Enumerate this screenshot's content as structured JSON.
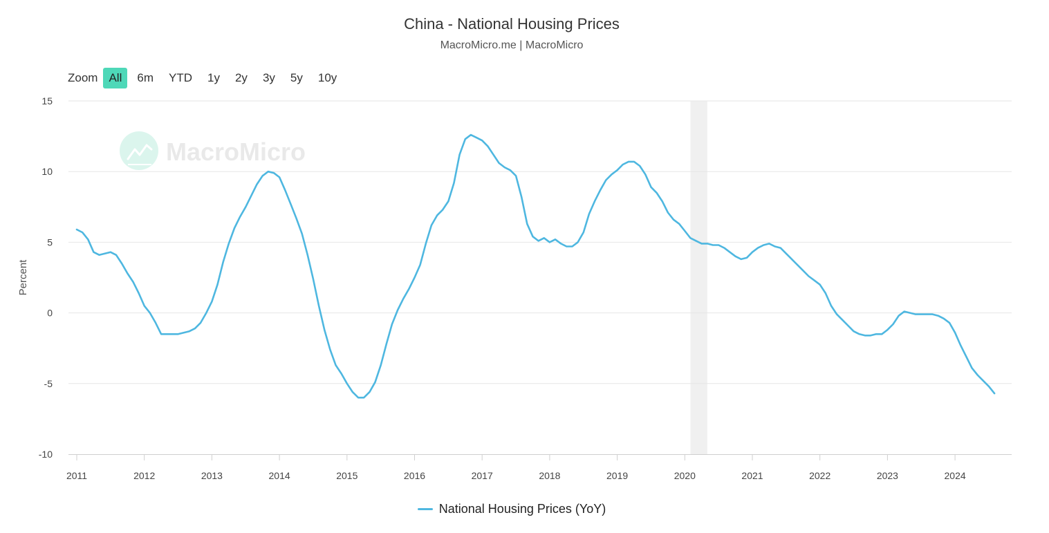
{
  "header": {
    "title": "China - National Housing Prices",
    "subtitle": "MacroMicro.me | MacroMicro"
  },
  "zoom": {
    "label": "Zoom",
    "options": [
      "All",
      "6m",
      "YTD",
      "1y",
      "2y",
      "3y",
      "5y",
      "10y"
    ],
    "active": "All"
  },
  "watermark": {
    "text": "MacroMicro",
    "icon": "chart-trend-icon"
  },
  "colors": {
    "series": "#4eb7e0",
    "zoom_active": "#4ed8b8",
    "shade": "#f0f0f0",
    "grid": "#e6e6e6"
  },
  "chart_data": {
    "type": "line",
    "title": "China - National Housing Prices",
    "subtitle": "MacroMicro.me | MacroMicro",
    "ylabel": "Percent",
    "xlabel": "",
    "ylim": [
      -10,
      15
    ],
    "yticks": [
      15,
      10,
      5,
      0,
      -5,
      -10
    ],
    "xlim": [
      "2011-01",
      "2024-12"
    ],
    "xticks": [
      "2011",
      "2012",
      "2013",
      "2014",
      "2015",
      "2016",
      "2017",
      "2018",
      "2019",
      "2020",
      "2021",
      "2022",
      "2023",
      "2024"
    ],
    "grid": true,
    "legend_position": "bottom-center",
    "shaded_ranges": [
      [
        "2020-02",
        "2020-04"
      ]
    ],
    "series": [
      {
        "name": "National Housing Prices (YoY)",
        "color": "#4eb7e0",
        "points": [
          [
            "2011-01",
            5.9
          ],
          [
            "2011-02",
            5.7
          ],
          [
            "2011-03",
            5.2
          ],
          [
            "2011-04",
            4.3
          ],
          [
            "2011-05",
            4.1
          ],
          [
            "2011-06",
            4.2
          ],
          [
            "2011-07",
            4.3
          ],
          [
            "2011-08",
            4.1
          ],
          [
            "2011-09",
            3.5
          ],
          [
            "2011-10",
            2.8
          ],
          [
            "2011-11",
            2.2
          ],
          [
            "2011-12",
            1.4
          ],
          [
            "2012-01",
            0.5
          ],
          [
            "2012-02",
            0.0
          ],
          [
            "2012-03",
            -0.7
          ],
          [
            "2012-04",
            -1.5
          ],
          [
            "2012-05",
            -1.5
          ],
          [
            "2012-06",
            -1.5
          ],
          [
            "2012-07",
            -1.5
          ],
          [
            "2012-08",
            -1.4
          ],
          [
            "2012-09",
            -1.3
          ],
          [
            "2012-10",
            -1.1
          ],
          [
            "2012-11",
            -0.7
          ],
          [
            "2012-12",
            0.0
          ],
          [
            "2013-01",
            0.8
          ],
          [
            "2013-02",
            2.0
          ],
          [
            "2013-03",
            3.6
          ],
          [
            "2013-04",
            4.9
          ],
          [
            "2013-05",
            6.0
          ],
          [
            "2013-06",
            6.8
          ],
          [
            "2013-07",
            7.5
          ],
          [
            "2013-08",
            8.3
          ],
          [
            "2013-09",
            9.1
          ],
          [
            "2013-10",
            9.7
          ],
          [
            "2013-11",
            10.0
          ],
          [
            "2013-12",
            9.9
          ],
          [
            "2014-01",
            9.6
          ],
          [
            "2014-02",
            8.7
          ],
          [
            "2014-03",
            7.7
          ],
          [
            "2014-04",
            6.7
          ],
          [
            "2014-05",
            5.6
          ],
          [
            "2014-06",
            4.1
          ],
          [
            "2014-07",
            2.4
          ],
          [
            "2014-08",
            0.5
          ],
          [
            "2014-09",
            -1.2
          ],
          [
            "2014-10",
            -2.6
          ],
          [
            "2014-11",
            -3.7
          ],
          [
            "2014-12",
            -4.3
          ],
          [
            "2015-01",
            -5.0
          ],
          [
            "2015-02",
            -5.6
          ],
          [
            "2015-03",
            -6.0
          ],
          [
            "2015-04",
            -6.0
          ],
          [
            "2015-05",
            -5.6
          ],
          [
            "2015-06",
            -4.9
          ],
          [
            "2015-07",
            -3.7
          ],
          [
            "2015-08",
            -2.2
          ],
          [
            "2015-09",
            -0.8
          ],
          [
            "2015-10",
            0.2
          ],
          [
            "2015-11",
            1.0
          ],
          [
            "2015-12",
            1.7
          ],
          [
            "2016-01",
            2.5
          ],
          [
            "2016-02",
            3.4
          ],
          [
            "2016-03",
            4.9
          ],
          [
            "2016-04",
            6.2
          ],
          [
            "2016-05",
            6.9
          ],
          [
            "2016-06",
            7.3
          ],
          [
            "2016-07",
            7.9
          ],
          [
            "2016-08",
            9.2
          ],
          [
            "2016-09",
            11.2
          ],
          [
            "2016-10",
            12.3
          ],
          [
            "2016-11",
            12.6
          ],
          [
            "2016-12",
            12.4
          ],
          [
            "2017-01",
            12.2
          ],
          [
            "2017-02",
            11.8
          ],
          [
            "2017-03",
            11.2
          ],
          [
            "2017-04",
            10.6
          ],
          [
            "2017-05",
            10.3
          ],
          [
            "2017-06",
            10.1
          ],
          [
            "2017-07",
            9.7
          ],
          [
            "2017-08",
            8.2
          ],
          [
            "2017-09",
            6.3
          ],
          [
            "2017-10",
            5.4
          ],
          [
            "2017-11",
            5.1
          ],
          [
            "2017-12",
            5.3
          ],
          [
            "2018-01",
            5.0
          ],
          [
            "2018-02",
            5.2
          ],
          [
            "2018-03",
            4.9
          ],
          [
            "2018-04",
            4.7
          ],
          [
            "2018-05",
            4.7
          ],
          [
            "2018-06",
            5.0
          ],
          [
            "2018-07",
            5.7
          ],
          [
            "2018-08",
            7.0
          ],
          [
            "2018-09",
            7.9
          ],
          [
            "2018-10",
            8.7
          ],
          [
            "2018-11",
            9.4
          ],
          [
            "2018-12",
            9.8
          ],
          [
            "2019-01",
            10.1
          ],
          [
            "2019-02",
            10.5
          ],
          [
            "2019-03",
            10.7
          ],
          [
            "2019-04",
            10.7
          ],
          [
            "2019-05",
            10.4
          ],
          [
            "2019-06",
            9.8
          ],
          [
            "2019-07",
            8.9
          ],
          [
            "2019-08",
            8.5
          ],
          [
            "2019-09",
            7.9
          ],
          [
            "2019-10",
            7.1
          ],
          [
            "2019-11",
            6.6
          ],
          [
            "2019-12",
            6.3
          ],
          [
            "2020-01",
            5.8
          ],
          [
            "2020-02",
            5.3
          ],
          [
            "2020-03",
            5.1
          ],
          [
            "2020-04",
            4.9
          ],
          [
            "2020-05",
            4.9
          ],
          [
            "2020-06",
            4.8
          ],
          [
            "2020-07",
            4.8
          ],
          [
            "2020-08",
            4.6
          ],
          [
            "2020-09",
            4.3
          ],
          [
            "2020-10",
            4.0
          ],
          [
            "2020-11",
            3.8
          ],
          [
            "2020-12",
            3.9
          ],
          [
            "2021-01",
            4.3
          ],
          [
            "2021-02",
            4.6
          ],
          [
            "2021-03",
            4.8
          ],
          [
            "2021-04",
            4.9
          ],
          [
            "2021-05",
            4.7
          ],
          [
            "2021-06",
            4.6
          ],
          [
            "2021-07",
            4.2
          ],
          [
            "2021-08",
            3.8
          ],
          [
            "2021-09",
            3.4
          ],
          [
            "2021-10",
            3.0
          ],
          [
            "2021-11",
            2.6
          ],
          [
            "2021-12",
            2.3
          ],
          [
            "2022-01",
            2.0
          ],
          [
            "2022-02",
            1.4
          ],
          [
            "2022-03",
            0.5
          ],
          [
            "2022-04",
            -0.1
          ],
          [
            "2022-05",
            -0.5
          ],
          [
            "2022-06",
            -0.9
          ],
          [
            "2022-07",
            -1.3
          ],
          [
            "2022-08",
            -1.5
          ],
          [
            "2022-09",
            -1.6
          ],
          [
            "2022-10",
            -1.6
          ],
          [
            "2022-11",
            -1.5
          ],
          [
            "2022-12",
            -1.5
          ],
          [
            "2023-01",
            -1.2
          ],
          [
            "2023-02",
            -0.8
          ],
          [
            "2023-03",
            -0.2
          ],
          [
            "2023-04",
            0.1
          ],
          [
            "2023-05",
            0.0
          ],
          [
            "2023-06",
            -0.1
          ],
          [
            "2023-07",
            -0.1
          ],
          [
            "2023-08",
            -0.1
          ],
          [
            "2023-09",
            -0.1
          ],
          [
            "2023-10",
            -0.2
          ],
          [
            "2023-11",
            -0.4
          ],
          [
            "2023-12",
            -0.7
          ],
          [
            "2024-01",
            -1.4
          ],
          [
            "2024-02",
            -2.3
          ],
          [
            "2024-03",
            -3.1
          ],
          [
            "2024-04",
            -3.9
          ],
          [
            "2024-05",
            -4.4
          ],
          [
            "2024-06",
            -4.8
          ],
          [
            "2024-07",
            -5.2
          ],
          [
            "2024-08",
            -5.7
          ]
        ]
      }
    ]
  }
}
